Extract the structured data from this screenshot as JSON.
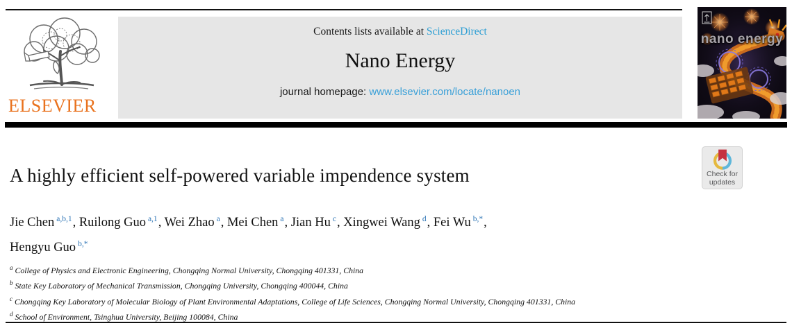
{
  "header": {
    "publisher_wordmark": "ELSEVIER",
    "contents_prefix": "Contents lists available at ",
    "contents_link": "ScienceDirect",
    "journal_title": "Nano Energy",
    "homepage_prefix": "journal homepage: ",
    "homepage_link": "www.elsevier.com/locate/nanoen",
    "cover_title": "nano energy",
    "colors": {
      "link_blue": "#2E9FD4",
      "url_blue": "#3AA0D8",
      "superscript_blue": "#2E75B6",
      "elsevier_orange": "#E9711C",
      "banner_gray": "#E6E6E6"
    }
  },
  "article": {
    "title": "A highly efficient self-powered variable impendence system",
    "authors": [
      {
        "name": "Jie Chen",
        "sup": "a,b,1",
        "sep": ", "
      },
      {
        "name": "Ruilong Guo",
        "sup": "a,1",
        "sep": ", "
      },
      {
        "name": "Wei Zhao",
        "sup": "a",
        "sep": ", "
      },
      {
        "name": "Mei Chen",
        "sup": "a",
        "sep": ", "
      },
      {
        "name": "Jian Hu",
        "sup": "c",
        "sep": ", "
      },
      {
        "name": "Xingwei Wang",
        "sup": "d",
        "sep": ", "
      },
      {
        "name": "Fei Wu",
        "sup": "b,*",
        "sep": ",",
        "break_after": true
      },
      {
        "name": "Hengyu Guo",
        "sup": "b,*",
        "sep": ""
      }
    ],
    "affiliations": [
      {
        "marker": "a",
        "text": "College of Physics and Electronic Engineering, Chongqing Normal University, Chongqing 401331, China"
      },
      {
        "marker": "b",
        "text": "State Key Laboratory of Mechanical Transmission, Chongqing University, Chongqing 400044, China"
      },
      {
        "marker": "c",
        "text": "Chongqing Key Laboratory of Molecular Biology of Plant Environmental Adaptations, College of Life Sciences, Chongqing Normal University, Chongqing 401331, China"
      },
      {
        "marker": "d",
        "text": "School of Environment, Tsinghua University, Beijing 100084, China"
      }
    ]
  },
  "badge": {
    "label": "Check for updates",
    "colors": {
      "ring_yellow": "#E5B93F",
      "ring_blue": "#5FB7DA",
      "bookmark_red": "#C53240"
    }
  }
}
